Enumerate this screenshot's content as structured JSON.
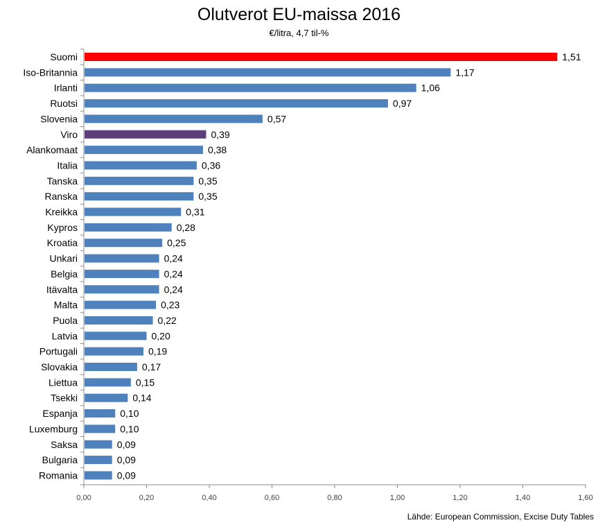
{
  "chart_data": {
    "type": "bar",
    "orientation": "horizontal",
    "title": "Olutverot EU-maissa 2016",
    "subtitle": "€/litra, 4,7 til-%",
    "source": "Lähde: European Commission, Excise Duty Tables",
    "xlim": [
      0,
      1.6
    ],
    "x_ticks": [
      "0,00",
      "0,20",
      "0,40",
      "0,60",
      "0,80",
      "1,00",
      "1,20",
      "1,40",
      "1,60"
    ],
    "grid": false,
    "legend": "none",
    "categories": [
      "Suomi",
      "Iso-Britannia",
      "Irlanti",
      "Ruotsi",
      "Slovenia",
      "Viro",
      "Alankomaat",
      "Italia",
      "Tanska",
      "Ranska",
      "Kreikka",
      "Kypros",
      "Kroatia",
      "Unkari",
      "Belgia",
      "Itävalta",
      "Malta",
      "Puola",
      "Latvia",
      "Portugali",
      "Slovakia",
      "Liettua",
      "Tsekki",
      "Espanja",
      "Luxemburg",
      "Saksa",
      "Bulgaria",
      "Romania"
    ],
    "values": [
      1.51,
      1.17,
      1.06,
      0.97,
      0.57,
      0.39,
      0.38,
      0.36,
      0.35,
      0.35,
      0.31,
      0.28,
      0.25,
      0.24,
      0.24,
      0.24,
      0.23,
      0.22,
      0.2,
      0.19,
      0.17,
      0.15,
      0.14,
      0.1,
      0.1,
      0.09,
      0.09,
      0.09
    ],
    "value_labels": [
      "1,51",
      "1,17",
      "1,06",
      "0,97",
      "0,57",
      "0,39",
      "0,38",
      "0,36",
      "0,35",
      "0,35",
      "0,31",
      "0,28",
      "0,25",
      "0,24",
      "0,24",
      "0,24",
      "0,23",
      "0,22",
      "0,20",
      "0,19",
      "0,17",
      "0,15",
      "0,14",
      "0,10",
      "0,10",
      "0,09",
      "0,09",
      "0,09"
    ],
    "bar_colors": [
      "#ff0000",
      "#4f81bd",
      "#4f81bd",
      "#4f81bd",
      "#4f81bd",
      "#5d3f7a",
      "#4f81bd",
      "#4f81bd",
      "#4f81bd",
      "#4f81bd",
      "#4f81bd",
      "#4f81bd",
      "#4f81bd",
      "#4f81bd",
      "#4f81bd",
      "#4f81bd",
      "#4f81bd",
      "#4f81bd",
      "#4f81bd",
      "#4f81bd",
      "#4f81bd",
      "#4f81bd",
      "#4f81bd",
      "#4f81bd",
      "#4f81bd",
      "#4f81bd",
      "#4f81bd",
      "#4f81bd"
    ]
  }
}
